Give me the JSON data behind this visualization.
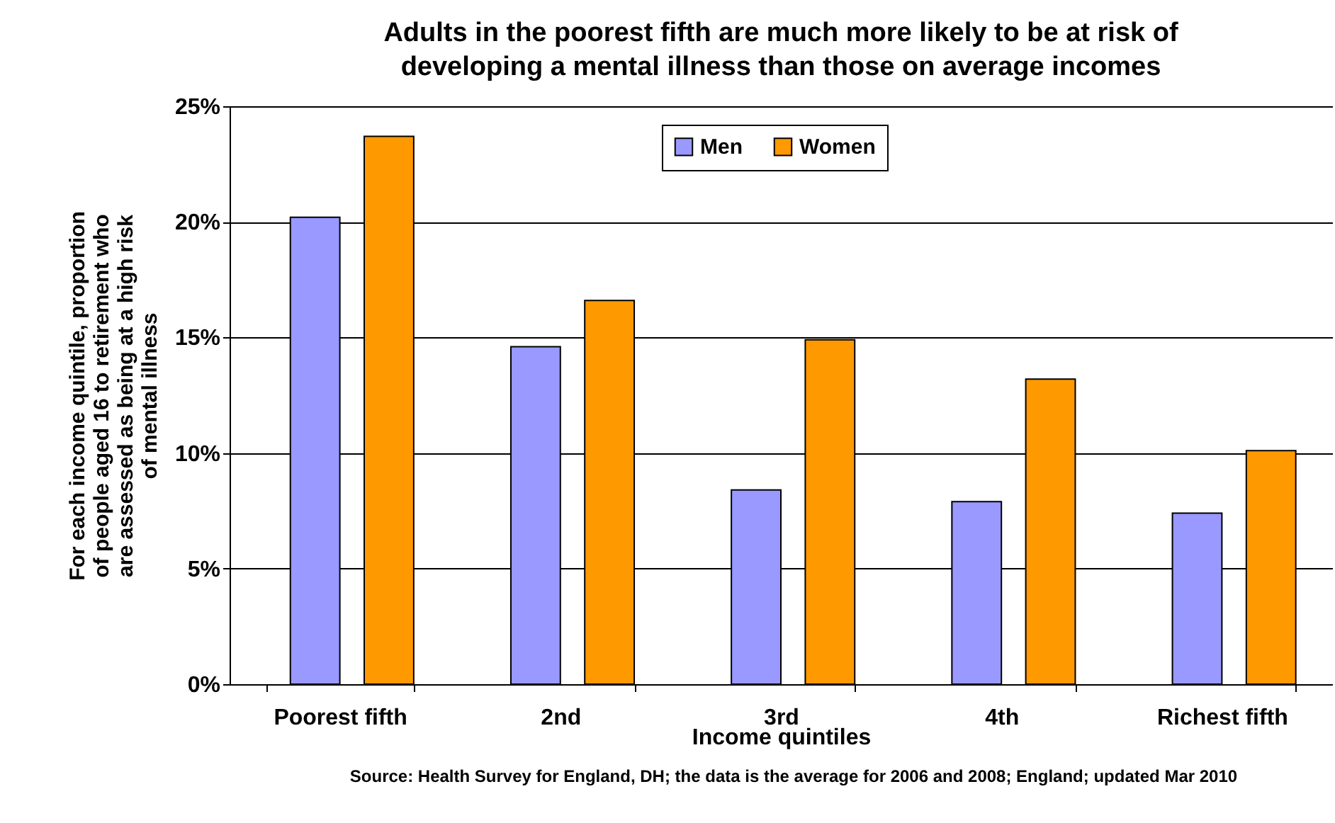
{
  "chart_data": {
    "type": "bar",
    "title": "Adults in the poorest fifth are much more likely to be at risk of developing a mental illness than those on average incomes",
    "xlabel": "Income quintiles",
    "ylabel": "For each income quintile, proportion of people aged 16 to retirement who are assessed as being at a high risk of mental illness",
    "annotations": [
      "Source: Health Survey for England, DH; the data is the average for 2006 and 2008; England; updated Mar 2010"
    ],
    "categories": [
      "Poorest fifth",
      "2nd",
      "3rd",
      "4th",
      "Richest fifth"
    ],
    "series": [
      {
        "name": "Men",
        "color": "#9999ff",
        "values": [
          20.2,
          14.6,
          8.4,
          7.9,
          7.4
        ]
      },
      {
        "name": "Women",
        "color": "#ff9900",
        "values": [
          23.7,
          16.6,
          14.9,
          13.2,
          10.1
        ]
      }
    ],
    "ylim": [
      0,
      25
    ],
    "yticks": [
      {
        "value": 0,
        "label": "0%"
      },
      {
        "value": 5,
        "label": "5%"
      },
      {
        "value": 10,
        "label": "10%"
      },
      {
        "value": 15,
        "label": "15%"
      },
      {
        "value": 20,
        "label": "20%"
      },
      {
        "value": 25,
        "label": "25%"
      }
    ],
    "grid": "y",
    "legend": "top"
  }
}
